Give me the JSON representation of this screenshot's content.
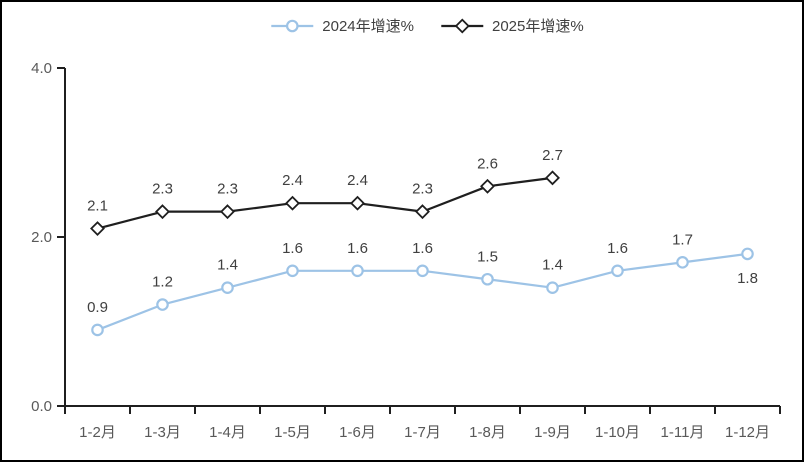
{
  "chart_data": {
    "type": "line",
    "title": "",
    "xlabel": "",
    "ylabel": "",
    "categories": [
      "1-2月",
      "1-3月",
      "1-4月",
      "1-5月",
      "1-6月",
      "1-7月",
      "1-8月",
      "1-9月",
      "1-10月",
      "1-11月",
      "1-12月"
    ],
    "series": [
      {
        "name": "2024年增速%",
        "color": "#9DC3E6",
        "marker": "circle",
        "values": [
          0.9,
          1.2,
          1.4,
          1.6,
          1.6,
          1.6,
          1.5,
          1.4,
          1.6,
          1.7,
          1.8
        ],
        "labels": [
          "0.9",
          "1.2",
          "1.4",
          "1.6",
          "1.6",
          "1.6",
          "1.5",
          "1.4",
          "1.6",
          "1.7",
          "1.8"
        ],
        "label_placement": [
          "above",
          "above",
          "above",
          "above",
          "above",
          "above",
          "above",
          "above",
          "above",
          "above",
          "below"
        ]
      },
      {
        "name": "2025年增速%",
        "color": "#1F1F1F",
        "marker": "diamond",
        "values": [
          2.1,
          2.3,
          2.3,
          2.4,
          2.4,
          2.3,
          2.6,
          2.7
        ],
        "labels": [
          "2.1",
          "2.3",
          "2.3",
          "2.4",
          "2.4",
          "2.3",
          "2.6",
          "2.7"
        ],
        "label_placement": [
          "above",
          "above",
          "above",
          "above",
          "above",
          "above",
          "above",
          "above"
        ]
      }
    ],
    "ylim": [
      0,
      4
    ],
    "yticks": [
      {
        "value": 0,
        "label": "0.0"
      },
      {
        "value": 2,
        "label": "2.0"
      },
      {
        "value": 4,
        "label": "4.0"
      }
    ],
    "legend_position": "top-center",
    "grid": false,
    "colors": {
      "axis": "#1F1F1F",
      "tick_label": "#595959",
      "data_label": "#404040",
      "background": "#FFFFFF",
      "frame_border": "#000000"
    }
  }
}
